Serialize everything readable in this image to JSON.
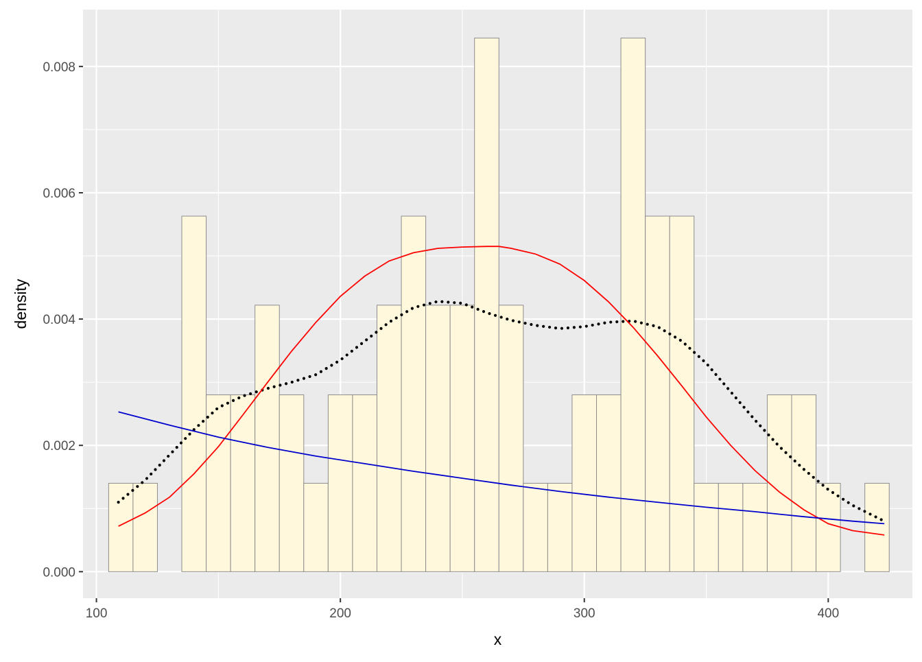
{
  "chart_data": {
    "type": "bar",
    "title": "",
    "xlabel": "x",
    "ylabel": "density",
    "xlim": [
      94.5,
      434.5
    ],
    "ylim": [
      -0.00042,
      0.0089
    ],
    "xticks": [
      100,
      200,
      300,
      400
    ],
    "xtick_labels": [
      "100",
      "200",
      "300",
      "400"
    ],
    "yticks": [
      0,
      0.002,
      0.004,
      0.006,
      0.008
    ],
    "ytick_labels": [
      "0.000",
      "0.002",
      "0.004",
      "0.006",
      "0.008"
    ],
    "grid": true,
    "legend": "none",
    "histogram": {
      "binwidth": 10,
      "bin_left_edges": [
        105,
        115,
        125,
        135,
        145,
        155,
        165,
        175,
        185,
        195,
        205,
        215,
        225,
        235,
        245,
        255,
        265,
        275,
        285,
        295,
        305,
        315,
        325,
        335,
        345,
        355,
        365,
        375,
        385,
        395,
        405,
        415
      ],
      "values": [
        0.0014,
        0.0014,
        0,
        0.00563,
        0.0028,
        0.0028,
        0.00422,
        0.0028,
        0.0014,
        0.0028,
        0.0028,
        0.00422,
        0.00563,
        0.00422,
        0.00422,
        0.00845,
        0.00422,
        0.0014,
        0.0014,
        0.0028,
        0.0028,
        0.00845,
        0.00563,
        0.00563,
        0.0014,
        0.0014,
        0.0014,
        0.0028,
        0.0028,
        0.0014,
        0,
        0.0014
      ],
      "fill": "#fff8dc",
      "stroke": "#8c8c8c"
    },
    "series": [
      {
        "style": "dotted",
        "color": "#000000",
        "x": [
          109,
          120,
          130,
          140,
          150,
          160,
          170,
          180,
          190,
          200,
          210,
          220,
          230,
          240,
          250,
          260,
          270,
          280,
          290,
          300,
          310,
          320,
          330,
          340,
          350,
          360,
          370,
          380,
          390,
          400,
          410,
          423
        ],
        "values": [
          0.0011,
          0.00145,
          0.00185,
          0.00225,
          0.0026,
          0.00278,
          0.0029,
          0.003,
          0.00312,
          0.00335,
          0.00365,
          0.00395,
          0.00418,
          0.00428,
          0.00425,
          0.0041,
          0.00398,
          0.0039,
          0.00385,
          0.00388,
          0.00395,
          0.00397,
          0.00388,
          0.00365,
          0.0033,
          0.00285,
          0.0024,
          0.00198,
          0.00162,
          0.0013,
          0.00105,
          0.0008
        ]
      },
      {
        "style": "solid",
        "color": "#ff0000",
        "x": [
          109,
          120,
          130,
          140,
          150,
          160,
          170,
          180,
          190,
          200,
          210,
          220,
          230,
          240,
          250,
          260,
          265,
          270,
          280,
          290,
          300,
          310,
          320,
          330,
          340,
          350,
          360,
          370,
          380,
          390,
          400,
          410,
          423
        ],
        "values": [
          0.00072,
          0.00093,
          0.00118,
          0.00155,
          0.00198,
          0.00248,
          0.00299,
          0.00349,
          0.00395,
          0.00436,
          0.00468,
          0.00492,
          0.00505,
          0.00512,
          0.00514,
          0.00515,
          0.00515,
          0.00512,
          0.00503,
          0.00487,
          0.00461,
          0.00427,
          0.00387,
          0.00342,
          0.00294,
          0.00245,
          0.002,
          0.0016,
          0.00126,
          0.00098,
          0.00076,
          0.00065,
          0.00058
        ]
      },
      {
        "style": "solid",
        "color": "#0000cd",
        "x": [
          109,
          130,
          150,
          170,
          190,
          210,
          230,
          250,
          270,
          290,
          310,
          330,
          350,
          370,
          390,
          410,
          423
        ],
        "values": [
          0.00253,
          0.00232,
          0.00213,
          0.00197,
          0.00183,
          0.00171,
          0.00159,
          0.00148,
          0.00137,
          0.00127,
          0.00118,
          0.0011,
          0.00102,
          0.00095,
          0.00087,
          0.0008,
          0.00076
        ]
      }
    ]
  }
}
